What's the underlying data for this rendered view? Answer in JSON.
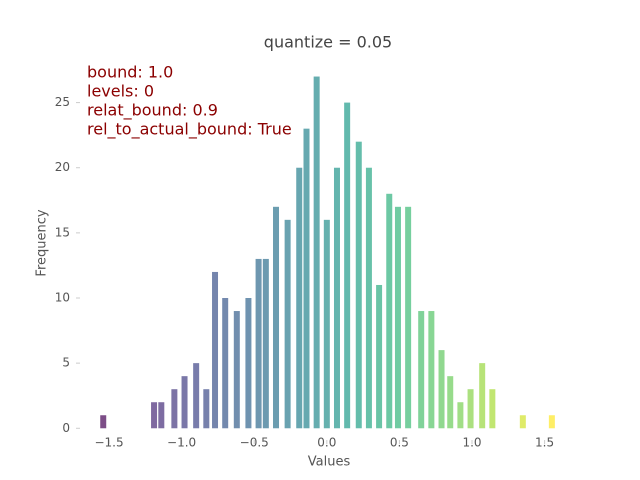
{
  "chart_data": {
    "type": "bar",
    "title": "quantize = 0.05",
    "x_label": "Values",
    "y_label": "Frequency",
    "annotations": [
      "bound: 1.0",
      "levels: 0",
      "relat_bound: 0.9",
      "rel_to_actual_bound: True"
    ],
    "annotation_color": "#8b0000",
    "colormap": "viridis",
    "x": [
      -1.54,
      -1.19,
      -1.14,
      -1.05,
      -0.98,
      -0.9,
      -0.83,
      -0.77,
      -0.7,
      -0.62,
      -0.54,
      -0.47,
      -0.42,
      -0.35,
      -0.27,
      -0.19,
      -0.14,
      -0.07,
      0.0,
      0.07,
      0.14,
      0.22,
      0.29,
      0.36,
      0.43,
      0.49,
      0.56,
      0.65,
      0.72,
      0.79,
      0.85,
      0.92,
      0.99,
      1.07,
      1.14,
      1.35,
      1.55
    ],
    "values": [
      1,
      2,
      2,
      3,
      4,
      5,
      3,
      12,
      10,
      9,
      10,
      13,
      13,
      17,
      16,
      20,
      23,
      27,
      16,
      20,
      25,
      22,
      20,
      11,
      18,
      17,
      17,
      9,
      9,
      6,
      4,
      2,
      3,
      5,
      3,
      1,
      1
    ],
    "xlim": [
      -1.7,
      1.73
    ],
    "ylim": [
      -0.9,
      28.5
    ],
    "xticks": [
      {
        "value": -1.5,
        "label": "−1.5"
      },
      {
        "value": -1,
        "label": "−1.0"
      },
      {
        "value": -0.5,
        "label": "−0.5"
      },
      {
        "value": 0,
        "label": "0.0"
      },
      {
        "value": 0.5,
        "label": "0.5"
      },
      {
        "value": 1,
        "label": "1.0"
      },
      {
        "value": 1.5,
        "label": "1.5"
      }
    ],
    "yticks": [
      0,
      5,
      10,
      15,
      20,
      25
    ],
    "grid": false
  }
}
